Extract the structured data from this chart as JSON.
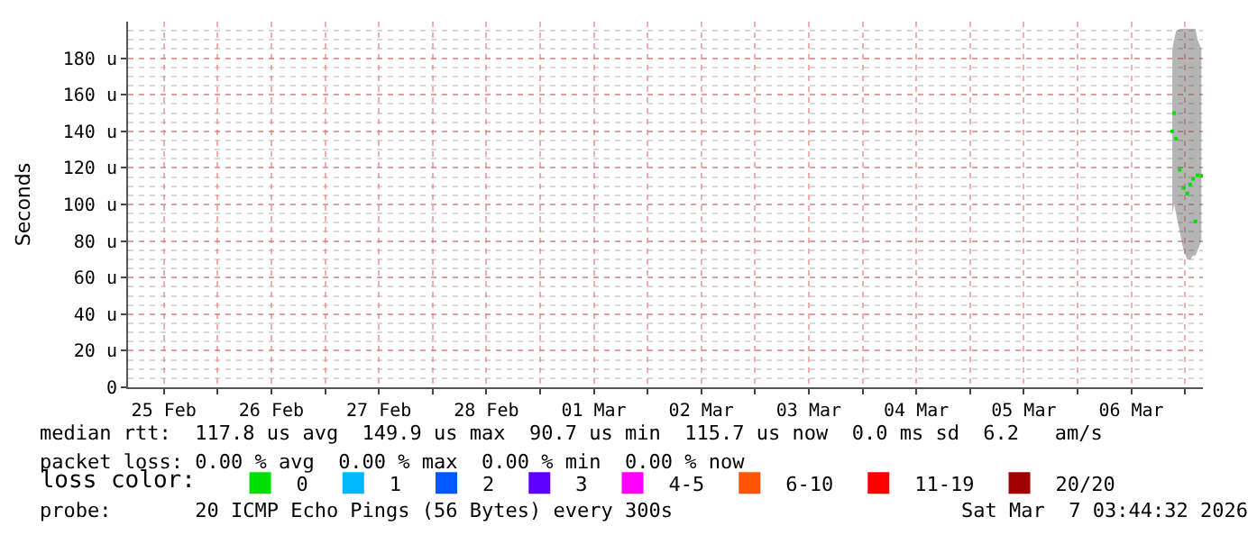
{
  "chart_data": {
    "type": "scatter",
    "ylabel": "Seconds",
    "legend_title": "loss color:",
    "legend": "bottom",
    "grid": true,
    "marker": "square",
    "x": [
      "2026-03-06T21:10",
      "2026-03-06T21:35",
      "2026-03-06T22:00",
      "2026-03-06T22:50",
      "2026-03-06T23:40",
      "2026-03-07T00:30",
      "2026-03-07T01:10",
      "2026-03-07T01:50",
      "2026-03-07T02:20",
      "2026-03-07T02:50",
      "2026-03-07T03:40"
    ],
    "series": [
      {
        "name": "0",
        "color": "#00e000",
        "values": [
          140,
          150,
          136,
          119,
          109,
          106,
          111,
          114,
          90.7,
          116,
          115.7
        ],
        "lower": [
          95,
          100,
          95,
          85,
          75,
          70,
          70,
          72,
          72,
          75,
          80
        ],
        "upper": [
          185,
          190,
          195,
          196,
          196,
          196,
          196,
          196,
          196,
          190,
          185
        ]
      },
      {
        "name": "1",
        "color": "#00b8ff",
        "values": [
          null,
          null,
          null,
          null,
          null,
          null,
          null,
          null,
          null,
          null,
          null
        ]
      },
      {
        "name": "2",
        "color": "#0059ff",
        "values": [
          null,
          null,
          null,
          null,
          null,
          null,
          null,
          null,
          null,
          null,
          null
        ]
      },
      {
        "name": "3",
        "color": "#5e00ff",
        "values": [
          null,
          null,
          null,
          null,
          null,
          null,
          null,
          null,
          null,
          null,
          null
        ]
      },
      {
        "name": "4-5",
        "color": "#ff00ff",
        "values": [
          null,
          null,
          null,
          null,
          null,
          null,
          null,
          null,
          null,
          null,
          null
        ]
      },
      {
        "name": "6-10",
        "color": "#ff5500",
        "values": [
          null,
          null,
          null,
          null,
          null,
          null,
          null,
          null,
          null,
          null,
          null
        ]
      },
      {
        "name": "11-19",
        "color": "#ff0000",
        "values": [
          null,
          null,
          null,
          null,
          null,
          null,
          null,
          null,
          null,
          null,
          null
        ]
      },
      {
        "name": "20/20",
        "color": "#a10000",
        "values": [
          null,
          null,
          null,
          null,
          null,
          null,
          null,
          null,
          null,
          null,
          null
        ]
      }
    ],
    "xlim": [
      "2026-02-25T04:00",
      "2026-03-07T04:00"
    ],
    "xticks": [
      {
        "value": "2026-02-25T12:00",
        "label": "25 Feb"
      },
      {
        "value": "2026-02-26T12:00",
        "label": "26 Feb"
      },
      {
        "value": "2026-02-27T12:00",
        "label": "27 Feb"
      },
      {
        "value": "2026-02-28T12:00",
        "label": "28 Feb"
      },
      {
        "value": "2026-03-01T12:00",
        "label": "01 Mar"
      },
      {
        "value": "2026-03-02T12:00",
        "label": "02 Mar"
      },
      {
        "value": "2026-03-03T12:00",
        "label": "03 Mar"
      },
      {
        "value": "2026-03-04T12:00",
        "label": "04 Mar"
      },
      {
        "value": "2026-03-05T12:00",
        "label": "05 Mar"
      },
      {
        "value": "2026-03-06T12:00",
        "label": "06 Mar"
      },
      {
        "value": "2026-02-26",
        "label": null
      },
      {
        "value": "2026-02-27",
        "label": null
      },
      {
        "value": "2026-02-28",
        "label": null
      },
      {
        "value": "2026-03-01",
        "label": null
      },
      {
        "value": "2026-03-02",
        "label": null
      },
      {
        "value": "2026-03-03",
        "label": null
      },
      {
        "value": "2026-03-04",
        "label": null
      },
      {
        "value": "2026-03-05",
        "label": null
      },
      {
        "value": "2026-03-06",
        "label": null
      },
      {
        "value": "2026-03-07",
        "label": null
      }
    ],
    "ylim": [
      0,
      200
    ],
    "yticks": [
      0,
      {
        "value": 20,
        "label": "20 u"
      },
      {
        "value": 40,
        "label": "40 u"
      },
      {
        "value": 60,
        "label": "60 u"
      },
      {
        "value": 80,
        "label": "80 u"
      },
      {
        "value": 100,
        "label": "100 u"
      },
      {
        "value": 120,
        "label": "120 u"
      },
      {
        "value": 140,
        "label": "140 u"
      },
      {
        "value": 160,
        "label": "160 u"
      },
      {
        "value": 180,
        "label": "180 u"
      }
    ],
    "annotations": [
      "median rtt:  117.8 us avg  149.9 us max  90.7 us min  115.7 us now  0.0 ms sd  6.2   am/s",
      "packet loss: 0.00 % avg  0.00 % max  0.00 % min  0.00 % now",
      "probe:       20 ICMP Echo Pings (56 Bytes) every 300s",
      "Sat Mar  7 03:44:32 2026"
    ]
  }
}
